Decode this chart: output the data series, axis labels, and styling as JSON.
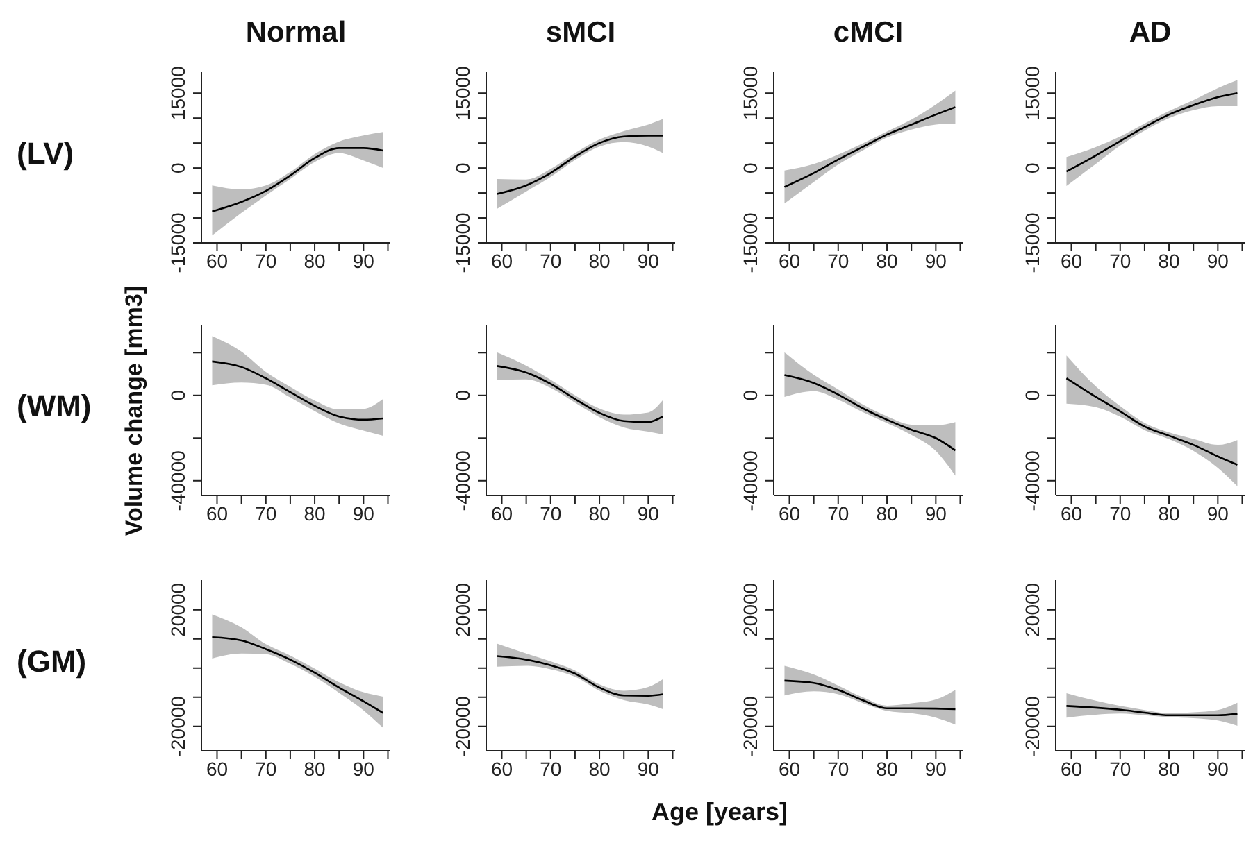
{
  "chart_data": [
    {
      "type": "line",
      "title": "Normal",
      "annotations": [
        "(LV)"
      ],
      "x": [
        59,
        65,
        70,
        75,
        80,
        85,
        90,
        94
      ],
      "xlim": [
        56.8,
        95.5
      ],
      "xticks": [
        60,
        {
          "value": 65,
          "label": null
        },
        70,
        {
          "value": 75,
          "label": null
        },
        80,
        {
          "value": 85,
          "label": null
        },
        90,
        {
          "value": 95,
          "label": null
        }
      ],
      "ylim": [
        -15000,
        19200
      ],
      "yticks": [
        -15000,
        {
          "value": -10000,
          "label": null
        },
        {
          "value": -5000,
          "label": null
        },
        0,
        {
          "value": 5000,
          "label": null
        },
        {
          "value": 10000,
          "label": null
        },
        15000
      ],
      "series": [
        {
          "color": "#000000",
          "values": [
            -8700,
            -6800,
            -4600,
            -1500,
            2000,
            4000,
            4000,
            3500
          ],
          "lower": [
            -13500,
            -9000,
            -5500,
            -2200,
            1200,
            3000,
            1500,
            0
          ],
          "upper": [
            -3500,
            -4300,
            -3500,
            -800,
            2800,
            5300,
            6500,
            7200
          ]
        }
      ]
    },
    {
      "type": "line",
      "title": "sMCI",
      "x": [
        59,
        65,
        70,
        75,
        80,
        85,
        90,
        93
      ],
      "xlim": [
        56.8,
        95.5
      ],
      "xticks": [
        60,
        {
          "value": 65,
          "label": null
        },
        70,
        {
          "value": 75,
          "label": null
        },
        80,
        {
          "value": 85,
          "label": null
        },
        90,
        {
          "value": 95,
          "label": null
        }
      ],
      "ylim": [
        -15000,
        19200
      ],
      "yticks": [
        -15000,
        {
          "value": -10000,
          "label": null
        },
        {
          "value": -5000,
          "label": null
        },
        0,
        {
          "value": 5000,
          "label": null
        },
        {
          "value": 10000,
          "label": null
        },
        15000
      ],
      "series": [
        {
          "color": "#000000",
          "values": [
            -5200,
            -3500,
            -1000,
            2300,
            5000,
            6300,
            6500,
            6500
          ],
          "lower": [
            -8200,
            -4700,
            -1800,
            1600,
            4300,
            5200,
            4300,
            3000
          ],
          "upper": [
            -2200,
            -2300,
            -200,
            3000,
            5700,
            7400,
            8700,
            9800
          ]
        }
      ]
    },
    {
      "type": "line",
      "title": "cMCI",
      "x": [
        59,
        65,
        70,
        75,
        80,
        85,
        90,
        94
      ],
      "xlim": [
        56.8,
        95.5
      ],
      "xticks": [
        60,
        {
          "value": 65,
          "label": null
        },
        70,
        {
          "value": 75,
          "label": null
        },
        80,
        {
          "value": 85,
          "label": null
        },
        90,
        {
          "value": 95,
          "label": null
        }
      ],
      "ylim": [
        -15000,
        19200
      ],
      "yticks": [
        -15000,
        {
          "value": -10000,
          "label": null
        },
        {
          "value": -5000,
          "label": null
        },
        0,
        {
          "value": 5000,
          "label": null
        },
        {
          "value": 10000,
          "label": null
        },
        15000
      ],
      "series": [
        {
          "color": "#000000",
          "values": [
            -3800,
            -1000,
            1700,
            4200,
            6700,
            8700,
            10700,
            12200
          ],
          "lower": [
            -7100,
            -2800,
            700,
            3500,
            6100,
            7700,
            8700,
            8900
          ],
          "upper": [
            -500,
            800,
            2700,
            4900,
            7300,
            9700,
            12700,
            15500
          ]
        }
      ]
    },
    {
      "type": "line",
      "title": "AD",
      "x": [
        59,
        65,
        70,
        75,
        80,
        85,
        90,
        94
      ],
      "xlim": [
        56.8,
        95.5
      ],
      "xticks": [
        60,
        {
          "value": 65,
          "label": null
        },
        70,
        {
          "value": 75,
          "label": null
        },
        80,
        {
          "value": 85,
          "label": null
        },
        90,
        {
          "value": 95,
          "label": null
        }
      ],
      "ylim": [
        -15000,
        19200
      ],
      "yticks": [
        -15000,
        {
          "value": -10000,
          "label": null
        },
        {
          "value": -5000,
          "label": null
        },
        0,
        {
          "value": 5000,
          "label": null
        },
        {
          "value": 10000,
          "label": null
        },
        15000
      ],
      "series": [
        {
          "color": "#000000",
          "values": [
            -700,
            2500,
            5400,
            8200,
            10700,
            12600,
            14200,
            15000
          ],
          "lower": [
            -3600,
            800,
            4500,
            7500,
            10000,
            11600,
            12400,
            12400
          ],
          "upper": [
            2200,
            4200,
            6300,
            8900,
            11400,
            13600,
            16000,
            17600
          ]
        }
      ]
    },
    {
      "type": "line",
      "ylabel": "Volume change [mm3]",
      "annotations": [
        "(WM)"
      ],
      "x": [
        59,
        65,
        70,
        75,
        80,
        85,
        90,
        94
      ],
      "xlim": [
        56.8,
        95.5
      ],
      "xticks": [
        60,
        {
          "value": 65,
          "label": null
        },
        70,
        {
          "value": 75,
          "label": null
        },
        80,
        {
          "value": 85,
          "label": null
        },
        90,
        {
          "value": 95,
          "label": null
        }
      ],
      "ylim": [
        -46900,
        33100
      ],
      "yticks": [
        -40000,
        {
          "value": -20000,
          "label": null
        },
        0,
        {
          "value": 20000,
          "label": null
        }
      ],
      "series": [
        {
          "color": "#000000",
          "values": [
            15900,
            13300,
            8000,
            1500,
            -4900,
            -9900,
            -11400,
            -10800
          ],
          "lower": [
            4700,
            6000,
            5000,
            -1000,
            -7400,
            -13200,
            -16500,
            -18900
          ],
          "upper": [
            27700,
            20500,
            11000,
            4000,
            -2400,
            -6600,
            -6300,
            -1700
          ]
        }
      ]
    },
    {
      "type": "line",
      "x": [
        59,
        65,
        70,
        75,
        80,
        85,
        90,
        93
      ],
      "xlim": [
        56.8,
        95.5
      ],
      "xticks": [
        60,
        {
          "value": 65,
          "label": null
        },
        70,
        {
          "value": 75,
          "label": null
        },
        80,
        {
          "value": 85,
          "label": null
        },
        90,
        {
          "value": 95,
          "label": null
        }
      ],
      "ylim": [
        -46900,
        33100
      ],
      "yticks": [
        -40000,
        {
          "value": -20000,
          "label": null
        },
        0,
        {
          "value": 20000,
          "label": null
        }
      ],
      "series": [
        {
          "color": "#000000",
          "values": [
            13800,
            10700,
            5400,
            -1700,
            -8200,
            -12000,
            -12500,
            -9900
          ],
          "lower": [
            7300,
            7500,
            3500,
            -3400,
            -10200,
            -15000,
            -17000,
            -18300
          ],
          "upper": [
            20200,
            13900,
            7300,
            0,
            -6200,
            -9000,
            -8000,
            -2200
          ]
        }
      ]
    },
    {
      "type": "line",
      "x": [
        59,
        65,
        70,
        75,
        80,
        85,
        90,
        94
      ],
      "xlim": [
        56.8,
        95.5
      ],
      "xticks": [
        60,
        {
          "value": 65,
          "label": null
        },
        70,
        {
          "value": 75,
          "label": null
        },
        80,
        {
          "value": 85,
          "label": null
        },
        90,
        {
          "value": 95,
          "label": null
        }
      ],
      "ylim": [
        -46900,
        33100
      ],
      "yticks": [
        -40000,
        {
          "value": -20000,
          "label": null
        },
        0,
        {
          "value": 20000,
          "label": null
        }
      ],
      "series": [
        {
          "color": "#000000",
          "values": [
            9500,
            5800,
            400,
            -6000,
            -11400,
            -16100,
            -20000,
            -25800
          ],
          "lower": [
            -700,
            2000,
            -2000,
            -7800,
            -13000,
            -18500,
            -26000,
            -37600
          ],
          "upper": [
            20200,
            9600,
            2800,
            -4200,
            -9800,
            -13700,
            -14000,
            -12500
          ]
        }
      ]
    },
    {
      "type": "line",
      "x": [
        59,
        65,
        70,
        75,
        80,
        85,
        90,
        94
      ],
      "xlim": [
        56.8,
        95.5
      ],
      "xticks": [
        60,
        {
          "value": 65,
          "label": null
        },
        70,
        {
          "value": 75,
          "label": null
        },
        80,
        {
          "value": 85,
          "label": null
        },
        90,
        {
          "value": 95,
          "label": null
        }
      ],
      "ylim": [
        -46900,
        33100
      ],
      "yticks": [
        -40000,
        {
          "value": -20000,
          "label": null
        },
        0,
        {
          "value": 20000,
          "label": null
        }
      ],
      "series": [
        {
          "color": "#000000",
          "values": [
            8000,
            -700,
            -7500,
            -14600,
            -18900,
            -23200,
            -28600,
            -32500
          ],
          "lower": [
            -3900,
            -5500,
            -10000,
            -16300,
            -20500,
            -26000,
            -34000,
            -42600
          ],
          "upper": [
            18700,
            4200,
            -5000,
            -12900,
            -17300,
            -20400,
            -23200,
            -21000
          ]
        }
      ]
    },
    {
      "type": "line",
      "annotations": [
        "(GM)"
      ],
      "x": [
        59,
        65,
        70,
        75,
        80,
        85,
        90,
        94
      ],
      "xlim": [
        56.8,
        95.5
      ],
      "xticks": [
        60,
        {
          "value": 65,
          "label": null
        },
        70,
        {
          "value": 75,
          "label": null
        },
        80,
        {
          "value": 85,
          "label": null
        },
        90,
        {
          "value": 95,
          "label": null
        }
      ],
      "ylim": [
        -28400,
        30200
      ],
      "yticks": [
        -20000,
        {
          "value": -10000,
          "label": null
        },
        {
          "value": 0,
          "label": null
        },
        {
          "value": 10000,
          "label": null
        },
        20000
      ],
      "series": [
        {
          "color": "#000000",
          "values": [
            10600,
            9500,
            6500,
            2900,
            -1600,
            -6700,
            -11400,
            -15400
          ],
          "lower": [
            3300,
            5000,
            4800,
            1500,
            -3000,
            -8500,
            -14500,
            -20500
          ],
          "upper": [
            18400,
            14000,
            8200,
            4300,
            -200,
            -4900,
            -8300,
            -9800
          ]
        }
      ]
    },
    {
      "type": "line",
      "xlabel": "Age [years]",
      "x": [
        59,
        65,
        70,
        75,
        80,
        85,
        90,
        93
      ],
      "xlim": [
        56.8,
        95.5
      ],
      "xticks": [
        60,
        {
          "value": 65,
          "label": null
        },
        70,
        {
          "value": 75,
          "label": null
        },
        80,
        {
          "value": 85,
          "label": null
        },
        90,
        {
          "value": 95,
          "label": null
        }
      ],
      "ylim": [
        -28400,
        30200
      ],
      "yticks": [
        -20000,
        {
          "value": -10000,
          "label": null
        },
        {
          "value": 0,
          "label": null
        },
        {
          "value": 10000,
          "label": null
        },
        20000
      ],
      "series": [
        {
          "color": "#000000",
          "values": [
            4100,
            2900,
            950,
            -1900,
            -6700,
            -9400,
            -9500,
            -9000
          ],
          "lower": [
            500,
            800,
            -400,
            -3000,
            -7800,
            -11000,
            -12500,
            -14100
          ],
          "upper": [
            8400,
            5000,
            2300,
            -800,
            -5600,
            -7800,
            -6500,
            -3800
          ]
        }
      ]
    },
    {
      "type": "line",
      "x": [
        59,
        65,
        70,
        75,
        80,
        85,
        90,
        94
      ],
      "xlim": [
        56.8,
        95.5
      ],
      "xticks": [
        60,
        {
          "value": 65,
          "label": null
        },
        70,
        {
          "value": 75,
          "label": null
        },
        80,
        {
          "value": 85,
          "label": null
        },
        90,
        {
          "value": 95,
          "label": null
        }
      ],
      "ylim": [
        -28400,
        30200
      ],
      "yticks": [
        -20000,
        {
          "value": -10000,
          "label": null
        },
        {
          "value": 0,
          "label": null
        },
        {
          "value": 10000,
          "label": null
        },
        20000
      ],
      "series": [
        {
          "color": "#000000",
          "values": [
            -4300,
            -5100,
            -7500,
            -11000,
            -13800,
            -13800,
            -13900,
            -14100
          ],
          "lower": [
            -9400,
            -8000,
            -9000,
            -12000,
            -14700,
            -15500,
            -17000,
            -19400
          ],
          "upper": [
            800,
            -2200,
            -6000,
            -10000,
            -12900,
            -12100,
            -10800,
            -7500
          ]
        }
      ]
    },
    {
      "type": "line",
      "x": [
        59,
        65,
        70,
        75,
        80,
        85,
        90,
        94
      ],
      "xlim": [
        56.8,
        95.5
      ],
      "xticks": [
        60,
        {
          "value": 65,
          "label": null
        },
        70,
        {
          "value": 75,
          "label": null
        },
        80,
        {
          "value": 85,
          "label": null
        },
        90,
        {
          "value": 95,
          "label": null
        }
      ],
      "ylim": [
        -28400,
        30200
      ],
      "yticks": [
        -20000,
        {
          "value": -10000,
          "label": null
        },
        {
          "value": 0,
          "label": null
        },
        {
          "value": 10000,
          "label": null
        },
        20000
      ],
      "series": [
        {
          "color": "#000000",
          "values": [
            -13000,
            -13600,
            -14300,
            -15300,
            -16200,
            -16200,
            -16200,
            -15700
          ],
          "lower": [
            -17000,
            -16000,
            -15600,
            -16200,
            -16900,
            -17200,
            -18000,
            -19800
          ],
          "upper": [
            -8600,
            -11200,
            -13000,
            -14400,
            -15500,
            -15200,
            -14400,
            -11900
          ]
        }
      ]
    }
  ]
}
